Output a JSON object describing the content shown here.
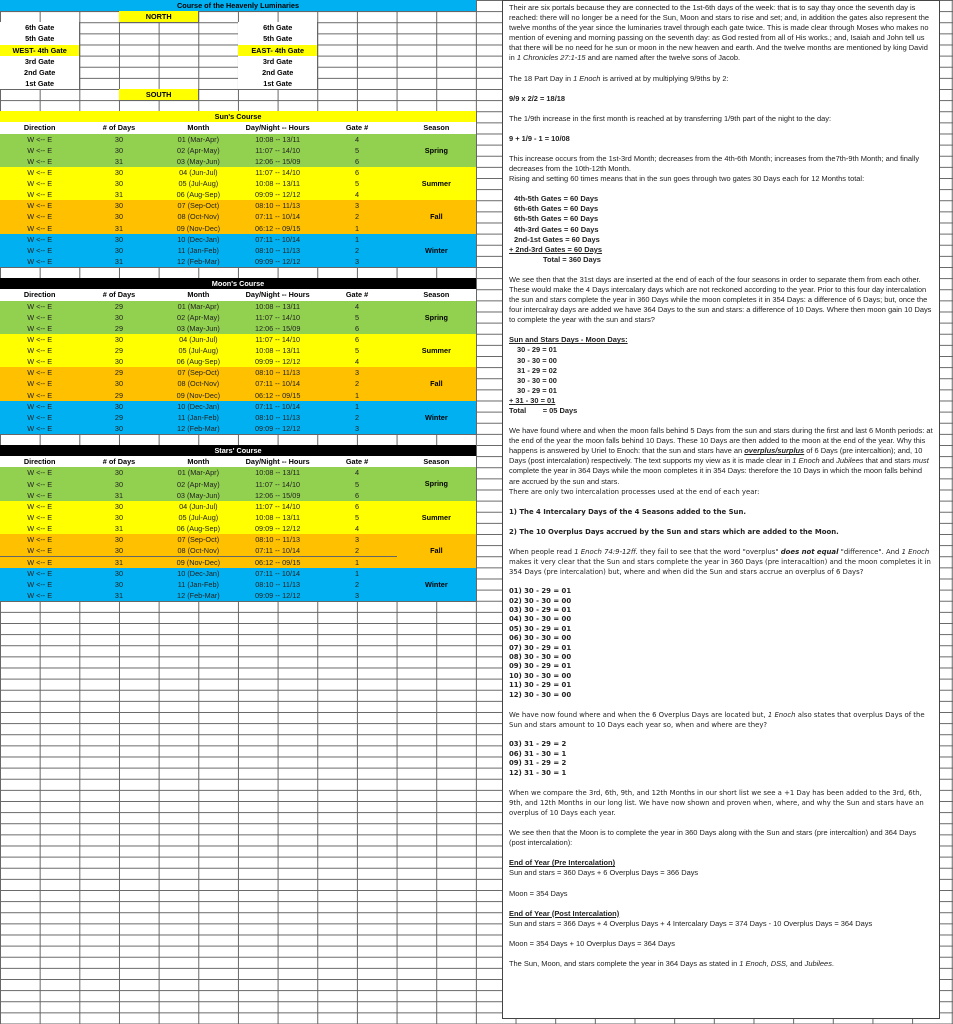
{
  "sheet": {
    "title": "Course of the Heavenly Luminaries",
    "north": "NORTH",
    "south": "SOUTH",
    "west_gates": [
      "6th Gate",
      "5th Gate",
      "WEST- 4th Gate",
      "3rd Gate",
      "2nd Gate",
      "1st Gate"
    ],
    "east_gates": [
      "6th Gate",
      "5th Gate",
      "EAST- 4th Gate",
      "3rd Gate",
      "2nd Gate",
      "1st Gate"
    ],
    "headers": [
      "Direction",
      "# of Days",
      "Month",
      "Day/Night -- Hours",
      "Gate #",
      "Season"
    ],
    "seasons": [
      {
        "name": "Spring",
        "color": "#92d050"
      },
      {
        "name": "Summer",
        "color": "#ffff00"
      },
      {
        "name": "Fall",
        "color": "#ffc000"
      },
      {
        "name": "Winter",
        "color": "#00b0f0"
      }
    ],
    "months": [
      "01 (Mar-Apr)",
      "02 (Apr-May)",
      "03 (May-Jun)",
      "04 (Jun-Jul)",
      "05 (Jul-Aug)",
      "06 (Aug-Sep)",
      "07 (Sep-Oct)",
      "08 (Oct-Nov)",
      "09 (Nov-Dec)",
      "10 (Dec-Jan)",
      "11 (Jan-Feb)",
      "12 (Feb-Mar)"
    ],
    "hours": [
      "10:08 -- 13/11",
      "11:07 -- 14/10",
      "12:06 -- 15/09",
      "11:07 -- 14/10",
      "10:08 -- 13/11",
      "09:09 -- 12/12",
      "08:10 -- 11/13",
      "07:11 -- 10/14",
      "06:12 -- 09/15",
      "07:11 -- 10/14",
      "08:10 -- 11/13",
      "09:09 -- 12/12"
    ],
    "gates": [
      "4",
      "5",
      "6",
      "6",
      "5",
      "4",
      "3",
      "2",
      "1",
      "1",
      "2",
      "3"
    ],
    "direction": "W <-- E",
    "courses": [
      {
        "title": "Sun's Course",
        "bg": "#ffff00",
        "fg": "#000000",
        "days": [
          "30",
          "30",
          "31",
          "30",
          "30",
          "31",
          "30",
          "30",
          "31",
          "30",
          "30",
          "31"
        ]
      },
      {
        "title": "Moon's Course",
        "bg": "#000000",
        "fg": "#ffffff",
        "days": [
          "29",
          "30",
          "29",
          "30",
          "29",
          "30",
          "29",
          "30",
          "29",
          "30",
          "29",
          "30"
        ]
      },
      {
        "title": "Stars' Course",
        "bg": "#000000",
        "fg": "#ffffff",
        "days": [
          "30",
          "30",
          "31",
          "30",
          "30",
          "31",
          "30",
          "30",
          "31",
          "30",
          "30",
          "31"
        ]
      }
    ],
    "colors": {
      "title_bg": "#00b0f0",
      "highlight": "#ffff00"
    }
  },
  "text": {
    "p1": [
      "Their are six portals because they are connected to the 1st-6th days of the week: that is to say thay once the seventh day is reached: there will no longer be a need for the Sun, Moon and stars to rise and set;  and, in addition the gates also represent  the  twelve months  of the year since the luminaries travel through each gate twice. This is made clear through Moses who makes no mention of evening and morning passing on the seventh day: as God rested from all of His works.; and, Isaiah and John tell us that there will be no need for he sun or moon in the new heaven and earth. And the twelve months are mentioned by king David in ",
      "1 Chronicles 27:1-15",
      " and  are named after the twelve sons of Jacob."
    ],
    "p2": [
      "The 18 Part Day in ",
      "1 Enoch",
      " is arrived at by multiplying 9/9ths by 2:"
    ],
    "eq1": "9/9 x 2/2 = 18/18",
    "p3": "The 1/9th increase in the first month is reached at by transferring 1/9th part of the night to the day:",
    "eq2": "9 + 1/9 - 1 = 10/08",
    "p4": "This increase occurs from the 1st-3rd Month; decreases from the 4th-6th Month; increases from the7th-9th Month; and finally decreases from the 10th-12th Month.",
    "p5": "Rising and setting 60 times means that in the sun goes through two gates 30 Days each for 12 Months total:",
    "gate_sums": [
      "4th-5th Gates = 60 Days",
      "6th-6th Gates = 60 Days",
      "6th-5th Gates = 60 Days",
      "4th-3rd Gates = 60 Days",
      "2nd-1st Gates = 60 Days",
      "+ 2nd-3rd Gates = 60 Days"
    ],
    "gate_total": "Total = 360 Days",
    "p6": "We see then that the 31st days are inserted at the end of each of the four seasons in order to separate them from each other. These would make the 4 Days intercalary days which are not reckoned according to the year. Prior to this four day intercalation the sun and stars complete the year in 360 Days while the moon completes it in 354 Days: a difference of 6 Days; but, once the four intercalray days are added we have 364 Days to the sun and stars: a difference of 10 Days. Where then moon gain 10 Days to  complete the year with the sun and stars?",
    "diff_head": "Sun and Stars Days - Moon Days:",
    "diff_list": [
      "30 - 29 = 01",
      "30 - 30 = 00",
      "31 - 29 = 02",
      "30 - 30 = 00",
      "30 - 29 = 01",
      "+  31 - 30 = 01"
    ],
    "diff_total": "Total        = 05 Days",
    "p7": [
      "We have found where and when the moon falls behind 5 Days from the sun and stars during the first and last 6 Month periods: at the end of the year the moon falls  behind 10 Days. These 10 Days are then added to the moon at the end of the year. Why this happens is answered by Uriel to Enoch: that the sun and stars have an ",
      "overplus/surplus",
      " of 6 Days (pre intercaltion); and, 10 Days (post intercalation) respectively. The text supports my view as it is made clear in ",
      "1 Enoch",
      " and  ",
      "Jubilees",
      " that and stars ",
      "must",
      " complete the year in 364 Days while the moon completes it in 354 Days: therefore the 10 Days in which the moon falls behind are accrued  by the sun and stars."
    ],
    "p8": "There are only two intercalation processes used at the end of each year:",
    "h1": "1) The 4 Intercalary Days of the 4 Seasons added to the Sun.",
    "h2": "2) The 10 Overplus Days accrued by the Sun and stars which are added to the Moon.",
    "p9": [
      "When people read ",
      "1 Enoch 74:9-12ff.",
      " they fail to see that the word \"overplus\" ",
      "does not equal",
      " \"difference\". And ",
      "1 Enoch",
      " makes it very clear that the Sun and stars complete the year in 360 Days (pre interacaltion) and the moon completes it in 354 Days (pre intercalation) but, where and when did the Sun and stars accrue an overplus of 6 Days?"
    ],
    "long_list": [
      "01) 30 - 29 = 01",
      "02) 30 - 30 = 00",
      "03) 30 - 29 = 01",
      "04) 30 - 30 = 00",
      "05) 30 - 29 = 01",
      "06) 30 - 30 = 00",
      "07) 30 - 29 = 01",
      "08) 30 - 30 = 00",
      "09) 30 - 29 = 01",
      "10) 30 - 30 = 00",
      "11) 30 - 29 = 01",
      "12) 30 - 30 = 00"
    ],
    "p10": [
      "We have now found where and when the 6 Overplus Days are located but, ",
      "1 Enoch",
      " also states that overplus Days of the Sun and stars amount to 10 Days each year so, when and where are they?"
    ],
    "short_list": [
      "03) 31 - 29 = 2",
      "06) 31 - 30 = 1",
      "09) 31 - 29 = 2",
      "12) 31 - 30 = 1"
    ],
    "p11": "When we compare the 3rd, 6th, 9th, and 12th Months in our short list we see a +1 Day has been added to the 3rd, 6th, 9th, and 12th Months in our long list. We have now shown and proven when, where, and why the Sun and stars have an overplus of 10 Days each year.",
    "p12": " We see then that the Moon is to complete the year in 360 Days along with the Sun and stars (pre intercaltion) and 364 Days (post intercalation):",
    "pre_head": "End of Year (Pre Intercalation)",
    "pre_sun": "Sun and stars = 360 Days + 6 Overplus Days = 366 Days",
    "pre_moon": "Moon = 354 Days",
    "post_head": "End of Year (Post Intercalation)",
    "post_sun": "Sun and stars = 366 Days + 4 Overplus Days + 4 Intercalary Days = 374 Days - 10 Overplus Days = 364 Days",
    "post_moon": "Moon = 354 Days + 10 Overplus Days = 364 Days",
    "p13": [
      "The Sun, Moon, and stars complete the year in 364 Days as stated in ",
      "1 Enoch, DSS,",
      " and ",
      "Jubilees",
      "."
    ]
  }
}
